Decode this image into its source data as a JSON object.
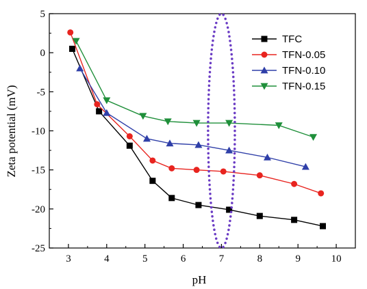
{
  "chart_data": {
    "type": "line",
    "xlabel": "pH",
    "ylabel": "Zeta potential (mV)",
    "xlim": [
      2.5,
      10.5
    ],
    "ylim": [
      -25,
      5
    ],
    "xticks": [
      "3",
      "4",
      "5",
      "6",
      "7",
      "8",
      "9",
      "10"
    ],
    "yticks": [
      "5",
      "0",
      "-5",
      "-10",
      "-15",
      "-20",
      "-25"
    ],
    "grid": false,
    "legend_position": "top-right",
    "series": [
      {
        "name": "TFC",
        "color": "#000000",
        "marker": "square",
        "points": [
          [
            3.1,
            0.5
          ],
          [
            3.8,
            -7.5
          ],
          [
            4.6,
            -11.9
          ],
          [
            5.2,
            -16.4
          ],
          [
            5.7,
            -18.6
          ],
          [
            6.4,
            -19.5
          ],
          [
            7.2,
            -20.1
          ],
          [
            8.0,
            -20.9
          ],
          [
            8.9,
            -21.4
          ],
          [
            9.65,
            -22.2
          ]
        ]
      },
      {
        "name": "TFN-0.05",
        "color": "#e8241f",
        "marker": "circle",
        "points": [
          [
            3.05,
            2.6
          ],
          [
            3.75,
            -6.6
          ],
          [
            4.6,
            -10.7
          ],
          [
            5.2,
            -13.8
          ],
          [
            5.7,
            -14.8
          ],
          [
            6.35,
            -15.0
          ],
          [
            7.05,
            -15.2
          ],
          [
            8.0,
            -15.7
          ],
          [
            8.9,
            -16.8
          ],
          [
            9.6,
            -18.0
          ]
        ]
      },
      {
        "name": "TFN-0.10",
        "color": "#2f3fa8",
        "marker": "triangle-up",
        "points": [
          [
            3.3,
            -2.0
          ],
          [
            4.0,
            -7.7
          ],
          [
            5.05,
            -11.0
          ],
          [
            5.65,
            -11.6
          ],
          [
            6.4,
            -11.8
          ],
          [
            7.2,
            -12.5
          ],
          [
            8.2,
            -13.4
          ],
          [
            9.2,
            -14.6
          ]
        ]
      },
      {
        "name": "TFN-0.15",
        "color": "#1f8f3a",
        "marker": "triangle-down",
        "points": [
          [
            3.2,
            1.5
          ],
          [
            4.0,
            -6.1
          ],
          [
            4.95,
            -8.1
          ],
          [
            5.6,
            -8.8
          ],
          [
            6.35,
            -9.0
          ],
          [
            7.2,
            -9.0
          ],
          [
            8.5,
            -9.3
          ],
          [
            9.4,
            -10.8
          ]
        ]
      }
    ],
    "annotations": [
      {
        "type": "dotted-ellipse",
        "color": "#6a3bc4",
        "cx": 7.0,
        "cy": -10.0,
        "rx": 0.35,
        "ry": 15.0
      }
    ]
  }
}
